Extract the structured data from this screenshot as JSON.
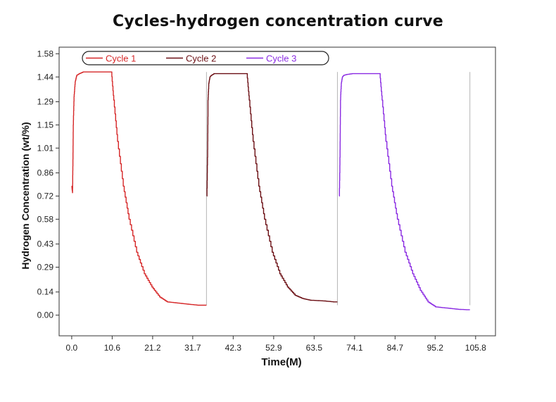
{
  "chart_data": {
    "type": "line",
    "title": "Cycles-hydrogen concentration curve",
    "xlabel": "Time(M)",
    "ylabel": "Hydrogen Concentration (wt/%)",
    "x_ticks": [
      "0.0",
      "10.6",
      "21.2",
      "31.7",
      "42.3",
      "52.9",
      "63.5",
      "74.1",
      "84.7",
      "95.2",
      "105.8"
    ],
    "y_ticks": [
      "0.00",
      "0.14",
      "0.29",
      "0.43",
      "0.58",
      "0.72",
      "0.86",
      "1.01",
      "1.15",
      "1.29",
      "1.44",
      "1.58"
    ],
    "xlim": [
      -3.3,
      111.0
    ],
    "ylim": [
      -0.125,
      1.62
    ],
    "grid": false,
    "legend_position": "top-left",
    "series": [
      {
        "name": "Cycle 1",
        "color": "#d62728",
        "x": [
          0.0,
          0.2,
          0.3,
          0.4,
          0.6,
          0.9,
          1.3,
          2.0,
          3.0,
          5.0,
          8.0,
          10.2,
          10.4,
          11.0,
          12.0,
          13.5,
          15.0,
          17.0,
          19.0,
          21.0,
          23.0,
          25.0,
          27.0,
          29.0,
          31.0,
          33.0,
          35.3
        ],
        "y": [
          0.78,
          0.74,
          0.9,
          1.15,
          1.32,
          1.41,
          1.45,
          1.46,
          1.47,
          1.47,
          1.47,
          1.47,
          1.47,
          1.3,
          1.05,
          0.78,
          0.58,
          0.38,
          0.25,
          0.17,
          0.11,
          0.08,
          0.075,
          0.07,
          0.065,
          0.06,
          0.06
        ]
      },
      {
        "name": "Cycle 2",
        "color": "#6b0f14",
        "x": [
          35.4,
          35.6,
          35.7,
          35.9,
          36.2,
          36.6,
          37.3,
          38.5,
          41.0,
          43.0,
          45.7,
          45.9,
          46.5,
          47.5,
          49.0,
          50.5,
          52.5,
          54.5,
          56.5,
          58.5,
          60.5,
          62.5,
          64.5,
          66.5,
          68.5,
          69.6
        ],
        "y": [
          0.72,
          1.0,
          1.3,
          1.4,
          1.44,
          1.45,
          1.46,
          1.46,
          1.46,
          1.46,
          1.46,
          1.46,
          1.3,
          1.05,
          0.78,
          0.58,
          0.38,
          0.25,
          0.17,
          0.12,
          0.1,
          0.09,
          0.088,
          0.085,
          0.08,
          0.08
        ]
      },
      {
        "name": "Cycle 3",
        "color": "#8a2be2",
        "x": [
          70.1,
          70.3,
          70.4,
          70.6,
          70.9,
          71.3,
          72.0,
          73.5,
          76.0,
          78.0,
          80.5,
          80.7,
          81.3,
          82.3,
          83.8,
          85.3,
          87.3,
          89.3,
          91.3,
          93.3,
          95.3,
          97.3,
          99.3,
          101.3,
          103.3,
          104.3
        ],
        "y": [
          0.72,
          1.0,
          1.3,
          1.4,
          1.44,
          1.45,
          1.455,
          1.46,
          1.46,
          1.46,
          1.46,
          1.46,
          1.3,
          1.05,
          0.78,
          0.58,
          0.38,
          0.25,
          0.15,
          0.08,
          0.05,
          0.045,
          0.04,
          0.035,
          0.033,
          0.033
        ]
      }
    ]
  }
}
